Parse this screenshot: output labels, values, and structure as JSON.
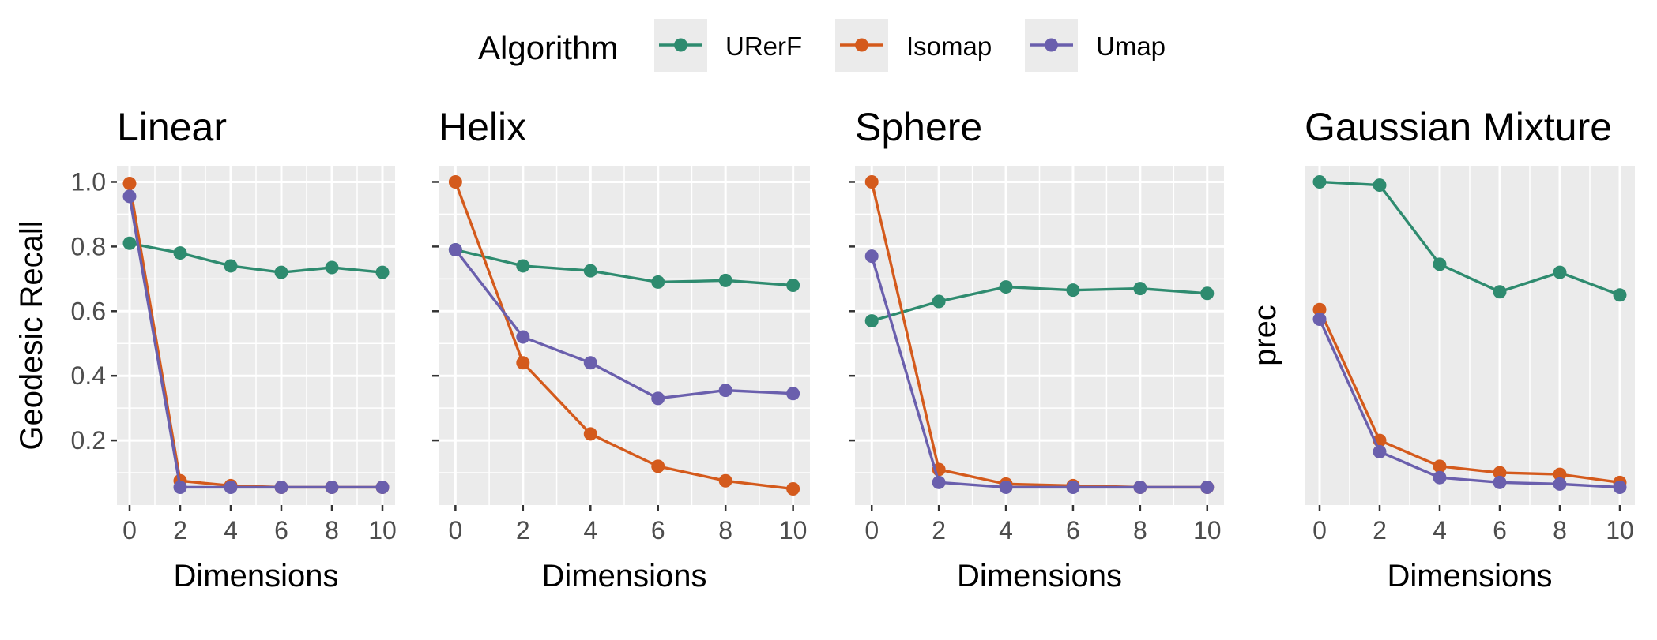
{
  "legend": {
    "title": "Algorithm",
    "items": [
      {
        "label": "URerF",
        "color": "#2e8b6f"
      },
      {
        "label": "Isomap",
        "color": "#d45a1c"
      },
      {
        "label": "Umap",
        "color": "#6a5fad"
      }
    ]
  },
  "chart_data": [
    {
      "type": "line",
      "title": "Linear",
      "xlabel": "Dimensions",
      "ylabel": "Geodesic Recall",
      "x": [
        0,
        2,
        4,
        6,
        8,
        10
      ],
      "x_ticks": [
        "0",
        "2",
        "4",
        "6",
        "8",
        "10"
      ],
      "y_ticks": [
        "0.2",
        "0.4",
        "0.6",
        "0.8",
        "1.0"
      ],
      "ylim": [
        0.0,
        1.05
      ],
      "grid": true,
      "series": [
        {
          "name": "URerF",
          "values": [
            0.81,
            0.78,
            0.74,
            0.72,
            0.735,
            0.72
          ]
        },
        {
          "name": "Isomap",
          "values": [
            0.995,
            0.075,
            0.06,
            0.055,
            0.055,
            0.055
          ]
        },
        {
          "name": "Umap",
          "values": [
            0.955,
            0.055,
            0.055,
            0.055,
            0.055,
            0.055
          ]
        }
      ]
    },
    {
      "type": "line",
      "title": "Helix",
      "xlabel": "Dimensions",
      "ylabel": "",
      "x": [
        0,
        2,
        4,
        6,
        8,
        10
      ],
      "x_ticks": [
        "0",
        "2",
        "4",
        "6",
        "8",
        "10"
      ],
      "y_ticks": [
        "",
        "",
        "",
        "",
        ""
      ],
      "ylim": [
        0.0,
        1.05
      ],
      "grid": true,
      "series": [
        {
          "name": "URerF",
          "values": [
            0.79,
            0.74,
            0.725,
            0.69,
            0.695,
            0.68
          ]
        },
        {
          "name": "Isomap",
          "values": [
            1.0,
            0.44,
            0.22,
            0.12,
            0.075,
            0.05
          ]
        },
        {
          "name": "Umap",
          "values": [
            0.79,
            0.52,
            0.44,
            0.33,
            0.355,
            0.345
          ]
        }
      ]
    },
    {
      "type": "line",
      "title": "Sphere",
      "xlabel": "Dimensions",
      "ylabel": "",
      "x": [
        0,
        2,
        4,
        6,
        8,
        10
      ],
      "x_ticks": [
        "0",
        "2",
        "4",
        "6",
        "8",
        "10"
      ],
      "y_ticks": [
        "",
        "",
        "",
        "",
        ""
      ],
      "ylim": [
        0.0,
        1.05
      ],
      "grid": true,
      "series": [
        {
          "name": "URerF",
          "values": [
            0.57,
            0.63,
            0.675,
            0.665,
            0.67,
            0.655
          ]
        },
        {
          "name": "Isomap",
          "values": [
            1.0,
            0.11,
            0.065,
            0.06,
            0.055,
            0.055
          ]
        },
        {
          "name": "Umap",
          "values": [
            0.77,
            0.07,
            0.055,
            0.055,
            0.055,
            0.055
          ]
        }
      ]
    },
    {
      "type": "line",
      "title": "Gaussian Mixture",
      "xlabel": "Dimensions",
      "ylabel": "prec",
      "x": [
        0,
        2,
        4,
        6,
        8,
        10
      ],
      "x_ticks": [
        "0",
        "2",
        "4",
        "6",
        "8",
        "10"
      ],
      "y_ticks": [],
      "ylim": [
        0.0,
        1.05
      ],
      "grid": true,
      "series": [
        {
          "name": "URerF",
          "values": [
            1.0,
            0.99,
            0.745,
            0.66,
            0.72,
            0.65
          ]
        },
        {
          "name": "Isomap",
          "values": [
            0.605,
            0.2,
            0.12,
            0.1,
            0.095,
            0.07
          ]
        },
        {
          "name": "Umap",
          "values": [
            0.575,
            0.165,
            0.085,
            0.07,
            0.065,
            0.055
          ]
        }
      ]
    }
  ]
}
